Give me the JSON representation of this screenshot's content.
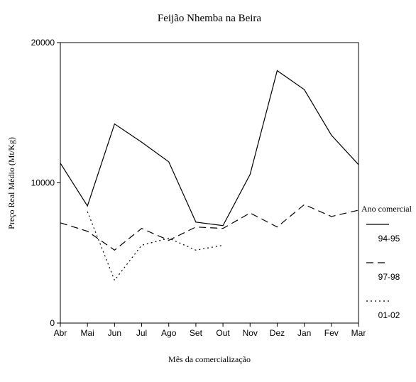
{
  "chart_data": {
    "type": "line",
    "title": "Feijão Nhemba na Beira",
    "x_label": "Mês da comercialização",
    "y_label": "Preço Real Médio (Mt/Kg)",
    "legend_title": "Ano comercial",
    "categories": [
      "Abr",
      "Mai",
      "Jun",
      "Jul",
      "Ago",
      "Set",
      "Out",
      "Nov",
      "Dez",
      "Jan",
      "Fev",
      "Mar"
    ],
    "series": [
      {
        "name": "94-95",
        "color": "#000000",
        "dash": "solid",
        "values": [
          11400,
          8350,
          14200,
          12900,
          11500,
          7200,
          6950,
          10600,
          18000,
          16650,
          13400,
          11300
        ]
      },
      {
        "name": "97-98",
        "color": "#000000",
        "dash": "dashed",
        "values": [
          7150,
          6550,
          5200,
          6750,
          5900,
          6850,
          6750,
          7850,
          6850,
          8450,
          7600,
          8050
        ]
      },
      {
        "name": "01-02",
        "color": "#000000",
        "dash": "dotted",
        "values": [
          null,
          7950,
          3050,
          5550,
          6050,
          5200,
          5550,
          null,
          null,
          null,
          null,
          null
        ]
      }
    ],
    "ylim": [
      0,
      20000
    ],
    "yticks": [
      0,
      10000,
      20000
    ],
    "grid": false
  }
}
